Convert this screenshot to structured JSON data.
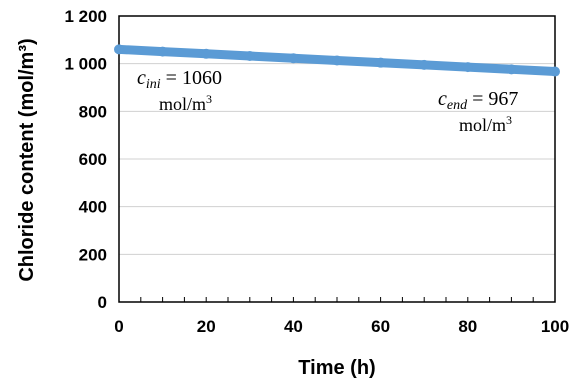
{
  "chart_data": {
    "type": "line",
    "xlabel": "Time (h)",
    "ylabel": "Chloride content (mol/m³)",
    "xlim": [
      0,
      100
    ],
    "ylim": [
      0,
      1200
    ],
    "xticks": [
      0,
      20,
      40,
      60,
      80,
      100
    ],
    "xtick_labels": [
      "0",
      "20",
      "40",
      "60",
      "80",
      "100"
    ],
    "yticks": [
      0,
      200,
      400,
      600,
      800,
      1000,
      1200
    ],
    "ytick_labels": [
      "0",
      "200",
      "400",
      "600",
      "800",
      "1 000",
      "1 200"
    ],
    "grid": "horizontal",
    "series": [
      {
        "color": "#5b9bd5",
        "x": [
          0,
          10,
          20,
          30,
          40,
          50,
          60,
          70,
          80,
          90,
          100
        ],
        "y": [
          1060,
          1050.7,
          1041.4,
          1032.1,
          1022.8,
          1013.5,
          1004.2,
          994.9,
          985.6,
          976.3,
          967
        ]
      }
    ],
    "annotations": [
      {
        "var": "c",
        "sub": "ini",
        "eq": " = 1060",
        "unit": "mol/m",
        "sup": "3"
      },
      {
        "var": "c",
        "sub": "end",
        "eq": " = 967",
        "unit": "mol/m",
        "sup": "3"
      }
    ]
  }
}
